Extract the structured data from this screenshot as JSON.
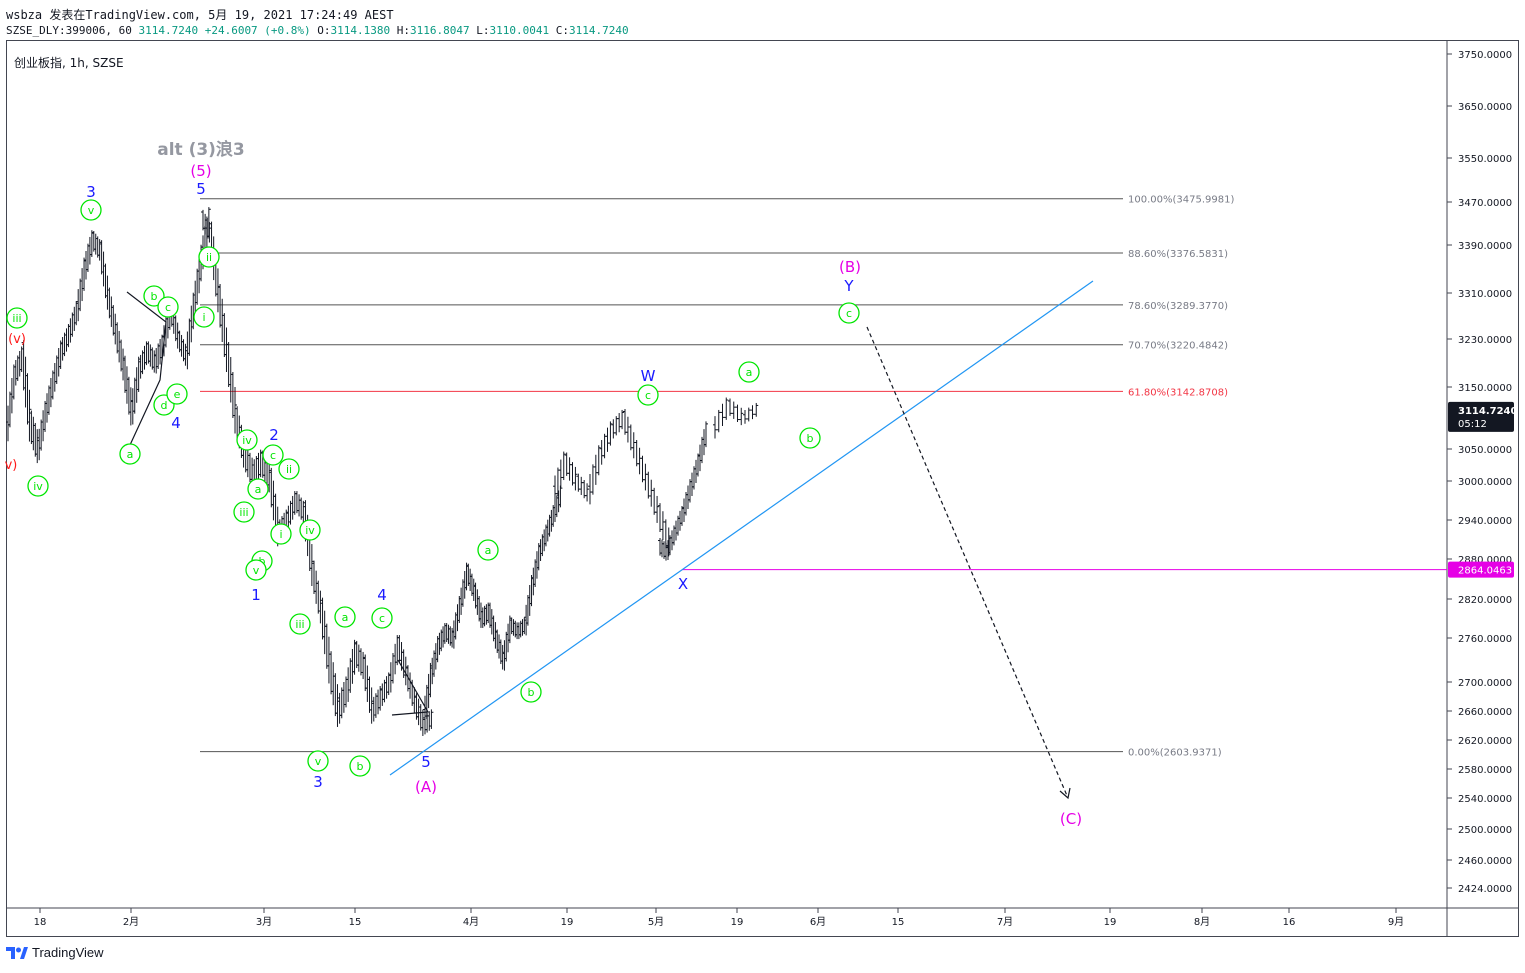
{
  "header": {
    "line1": "wsbza 发表在TradingView.com, 5月 19, 2021 17:24:49 AEST",
    "symbol_code": "SZSE_DLY:399006, 60",
    "last": "3114.7240",
    "change": "+24.6007 (+0.8%)",
    "o_label": "O:",
    "o_value": "3114.1380",
    "h_label": "H:",
    "h_value": "3116.8047",
    "l_label": "L:",
    "l_value": "3110.0041",
    "c_label": "C:",
    "c_value": "3114.7240"
  },
  "symbol_title": "创业板指, 1h, SZSE",
  "footer": {
    "brand": "TradingView"
  },
  "colors": {
    "green_label": "#00e600",
    "blue_label": "#1a1aff",
    "magenta_label": "#e600e6",
    "red_label": "#ff1a1a",
    "trendline": "#2196f3",
    "fib_grey": "#787b86",
    "fib_pink": "#f23645",
    "support_line": "#e600e6",
    "price_tag_bg": "#131722"
  },
  "chart_data": {
    "type": "candlestick",
    "y_ticks": [
      "3750.0000",
      "3650.0000",
      "3550.0000",
      "3470.0000",
      "3390.0000",
      "3310.0000",
      "3230.0000",
      "3150.0000",
      "3050.0000",
      "3000.0000",
      "2940.0000",
      "2880.0000",
      "2820.0000",
      "2760.0000",
      "2700.0000",
      "2660.0000",
      "2620.0000",
      "2580.0000",
      "2540.0000",
      "2500.0000",
      "2460.0000",
      "2424.0000"
    ],
    "x_ticks": [
      "18",
      "2月",
      "15",
      "3月",
      "15",
      "4月",
      "19",
      "5月",
      "19",
      "6月",
      "15",
      "7月",
      "19",
      "8月",
      "16",
      "9月"
    ],
    "last_price_tag": "3114.7240",
    "countdown": "05:12",
    "support_tag": "2864.0463",
    "fib_levels": [
      {
        "label": "100.00%(3475.9981)",
        "value": 3475.9981,
        "color": "grey"
      },
      {
        "label": "88.60%(3376.5831)",
        "value": 3376.5831,
        "color": "grey"
      },
      {
        "label": "78.60%(3289.3770)",
        "value": 3289.377,
        "color": "grey"
      },
      {
        "label": "70.70%(3220.4842)",
        "value": 3220.4842,
        "color": "grey"
      },
      {
        "label": "61.80%(3142.8708)",
        "value": 3142.8708,
        "color": "pink"
      },
      {
        "label": "0.00%(2603.9371)",
        "value": 2603.9371,
        "color": "grey"
      }
    ],
    "support_level": 2864.0463,
    "annotation_title": "alt (3)浪3",
    "wave_labels_green_circle": [
      "iii",
      "iv",
      "v",
      "ii",
      "i",
      "a",
      "b",
      "c",
      "d",
      "e",
      "iv",
      "c",
      "ii",
      "iii",
      "a",
      "b",
      "v",
      "i",
      "iv",
      "iii",
      "v",
      "a",
      "c",
      "b",
      "a",
      "b",
      "c",
      "a",
      "b",
      "c"
    ],
    "wave_labels_blue": [
      "3",
      "5",
      "4",
      "2",
      "1",
      "3",
      "4",
      "5",
      "W",
      "X",
      "Y"
    ],
    "wave_labels_magenta": [
      "(5)",
      "(A)",
      "(B)",
      "(C)"
    ],
    "wave_labels_red": [
      "(v)",
      "v)"
    ],
    "price_path": [
      [
        3080,
        3140,
        3050,
        3170
      ],
      [
        3170,
        3230,
        3140,
        3200
      ],
      [
        3200,
        3220,
        3060,
        3090
      ],
      [
        3090,
        3130,
        3010,
        3050
      ],
      [
        3050,
        3120,
        3030,
        3110
      ],
      [
        3110,
        3180,
        3090,
        3160
      ],
      [
        3160,
        3230,
        3140,
        3210
      ],
      [
        3210,
        3260,
        3180,
        3240
      ],
      [
        3240,
        3300,
        3220,
        3280
      ],
      [
        3280,
        3360,
        3260,
        3350
      ],
      [
        3350,
        3420,
        3330,
        3400
      ],
      [
        3400,
        3440,
        3360,
        3380
      ],
      [
        3380,
        3390,
        3290,
        3300
      ],
      [
        3300,
        3320,
        3220,
        3240
      ],
      [
        3240,
        3260,
        3160,
        3180
      ],
      [
        3180,
        3200,
        3080,
        3110
      ],
      [
        3110,
        3200,
        3090,
        3180
      ],
      [
        3180,
        3230,
        3150,
        3210
      ],
      [
        3210,
        3260,
        3180,
        3190
      ],
      [
        3190,
        3230,
        3140,
        3220
      ],
      [
        3220,
        3300,
        3200,
        3280
      ],
      [
        3280,
        3290,
        3210,
        3230
      ],
      [
        3230,
        3250,
        3180,
        3200
      ],
      [
        3200,
        3300,
        3190,
        3290
      ],
      [
        3290,
        3380,
        3270,
        3370
      ],
      [
        3370,
        3460,
        3350,
        3440
      ],
      [
        3440,
        3476,
        3400,
        3410
      ],
      [
        3410,
        3420,
        3290,
        3300
      ],
      [
        3300,
        3320,
        3180,
        3200
      ],
      [
        3200,
        3220,
        3080,
        3100
      ],
      [
        3100,
        3120,
        3020,
        3040
      ],
      [
        3040,
        3080,
        2980,
        3010
      ],
      [
        3010,
        3060,
        2960,
        3030
      ],
      [
        3030,
        3070,
        2980,
        3000
      ],
      [
        3000,
        3010,
        2900,
        2920
      ],
      [
        2920,
        2960,
        2880,
        2940
      ],
      [
        2940,
        2990,
        2920,
        2970
      ],
      [
        2970,
        3000,
        2930,
        2950
      ],
      [
        2950,
        2960,
        2850,
        2860
      ],
      [
        2860,
        2880,
        2790,
        2800
      ],
      [
        2800,
        2820,
        2700,
        2720
      ],
      [
        2720,
        2740,
        2620,
        2660
      ],
      [
        2660,
        2700,
        2610,
        2690
      ],
      [
        2690,
        2760,
        2670,
        2740
      ],
      [
        2740,
        2780,
        2700,
        2720
      ],
      [
        2720,
        2730,
        2640,
        2660
      ],
      [
        2660,
        2690,
        2620,
        2680
      ],
      [
        2680,
        2720,
        2660,
        2700
      ],
      [
        2700,
        2760,
        2690,
        2750
      ],
      [
        2750,
        2770,
        2700,
        2710
      ],
      [
        2710,
        2720,
        2660,
        2670
      ],
      [
        2670,
        2690,
        2620,
        2640
      ],
      [
        2640,
        2660,
        2605,
        2650
      ],
      [
        2650,
        2720,
        2640,
        2710
      ],
      [
        2710,
        2760,
        2700,
        2750
      ],
      [
        2750,
        2790,
        2730,
        2770
      ],
      [
        2770,
        2800,
        2740,
        2760
      ],
      [
        2760,
        2820,
        2750,
        2810
      ],
      [
        2810,
        2870,
        2800,
        2860
      ],
      [
        2860,
        2880,
        2820,
        2830
      ],
      [
        2830,
        2850,
        2780,
        2790
      ],
      [
        2790,
        2830,
        2760,
        2800
      ],
      [
        2800,
        2810,
        2740,
        2760
      ],
      [
        2760,
        2780,
        2720,
        2730
      ],
      [
        2730,
        2790,
        2720,
        2780
      ],
      [
        2780,
        2810,
        2760,
        2770
      ],
      [
        2770,
        2790,
        2740,
        2780
      ],
      [
        2780,
        2850,
        2770,
        2840
      ],
      [
        2840,
        2900,
        2830,
        2890
      ],
      [
        2890,
        2930,
        2870,
        2920
      ],
      [
        2920,
        2960,
        2900,
        2950
      ],
      [
        2950,
        2990,
        2930,
        2980
      ],
      [
        2980,
        3040,
        2960,
        3030
      ],
      [
        3030,
        3060,
        2990,
        3000
      ],
      [
        3000,
        3010,
        2960,
        2980
      ],
      [
        2980,
        3050,
        2970,
        3040
      ],
      [
        3040,
        3090,
        3020,
        3080
      ],
      [
        3080,
        3120,
        3060,
        3100
      ],
      [
        3100,
        3110,
        3040,
        3050
      ],
      [
        3050,
        3060,
        2990,
        3000
      ],
      [
        3000,
        3010,
        2940,
        2950
      ],
      [
        2950,
        2960,
        2880,
        2900
      ],
      [
        2900,
        2920,
        2864,
        2890
      ],
      [
        2890,
        2930,
        2880,
        2920
      ],
      [
        2920,
        2960,
        2910,
        2950
      ],
      [
        2950,
        3000,
        2940,
        2990
      ],
      [
        2990,
        3040,
        2980,
        3030
      ],
      [
        3030,
        3090,
        3020,
        3080
      ],
      [
        3080,
        3130,
        3070,
        3120
      ],
      [
        3120,
        3130,
        3080,
        3100
      ],
      [
        3100,
        3120,
        3085,
        3115
      ]
    ]
  }
}
